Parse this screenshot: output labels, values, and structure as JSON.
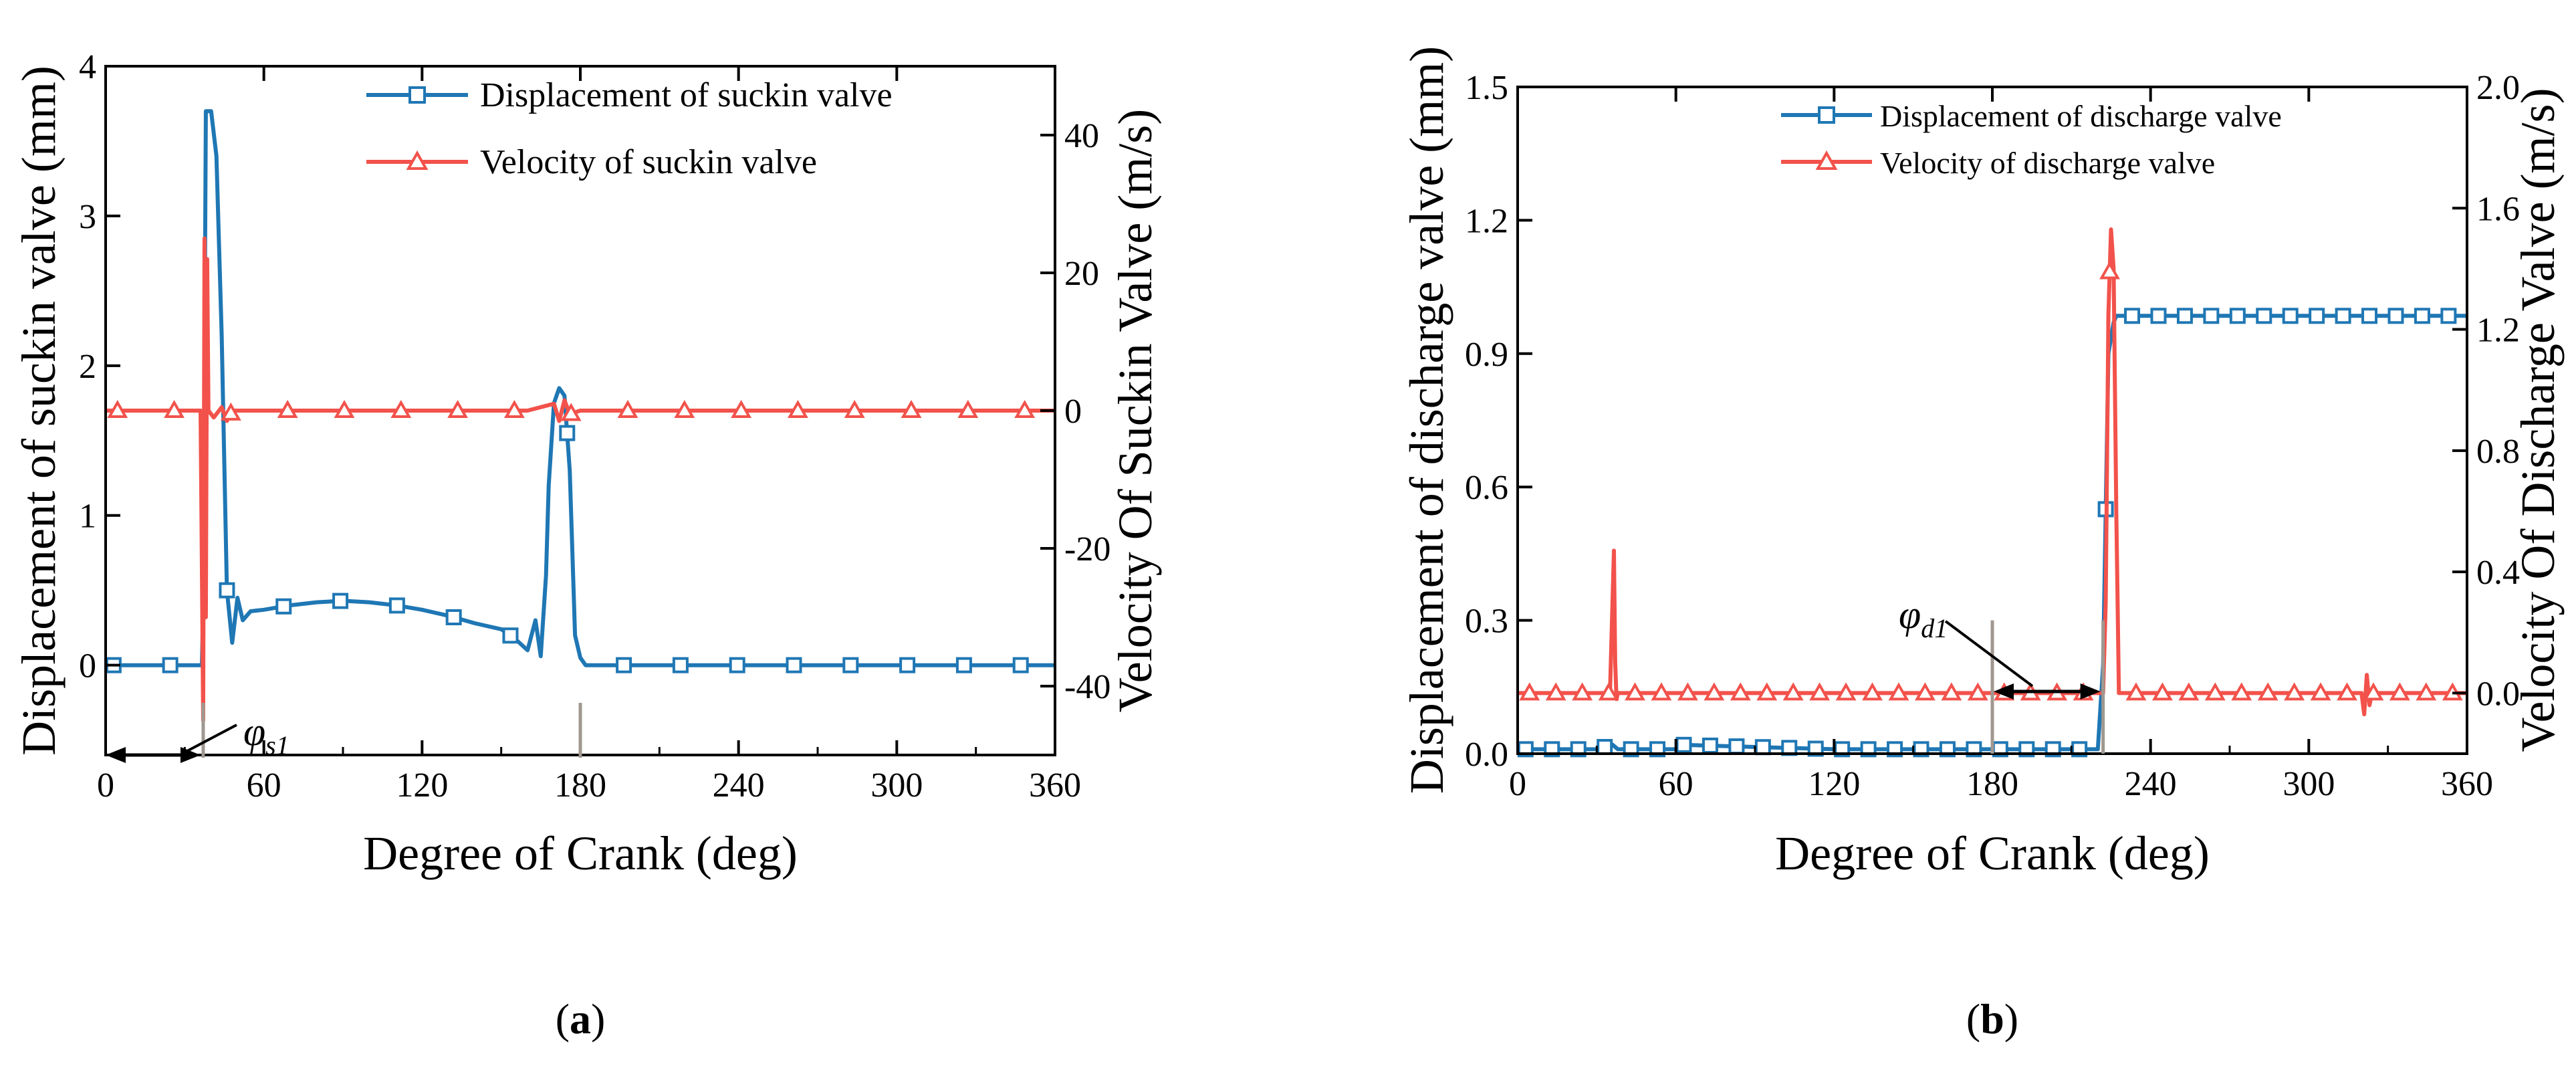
{
  "chart_data": [
    {
      "id": "a",
      "type": "line",
      "panel_label": "a",
      "xlabel": "Degree of Crank (deg)",
      "ylabel_left": "Displacement of  suckin  valve (mm)",
      "ylabel_right": "Velocity Of Suckin Valve (m/s)",
      "xlim": [
        0,
        360
      ],
      "ylim_left": [
        -0.6,
        4
      ],
      "ylim_right": [
        -50,
        50
      ],
      "xticks": [
        0,
        60,
        120,
        180,
        240,
        300,
        360
      ],
      "yticks_left": [
        0,
        1,
        2,
        3,
        4
      ],
      "yticks_right": [
        -40,
        -20,
        0,
        20,
        40
      ],
      "legend_position": "top-right",
      "grid": false,
      "annotation": {
        "symbol": "φ",
        "subscript": "s1",
        "x_from": 0,
        "x_to": 37
      },
      "marker_lines": [
        37,
        180
      ],
      "series": [
        {
          "name": "Displacement of  suckin  valve",
          "color": "#1f77b4",
          "marker": "square",
          "axis": "left",
          "x": [
            0,
            36.5,
            37,
            38,
            40,
            42,
            44,
            46,
            48,
            50,
            52,
            55,
            60,
            70,
            80,
            90,
            100,
            110,
            120,
            130,
            140,
            150,
            155,
            160,
            163,
            165,
            167,
            168,
            170,
            172,
            174,
            176,
            178,
            180,
            182,
            190,
            360
          ],
          "y": [
            0,
            0,
            0.4,
            3.7,
            3.7,
            3.4,
            2.2,
            0.5,
            0.15,
            0.45,
            0.3,
            0.36,
            0.37,
            0.4,
            0.42,
            0.43,
            0.42,
            0.4,
            0.37,
            0.33,
            0.28,
            0.24,
            0.18,
            0.1,
            0.3,
            0.06,
            0.6,
            1.2,
            1.75,
            1.85,
            1.8,
            1.3,
            0.2,
            0.05,
            0,
            0,
            0
          ]
        },
        {
          "name": "Velocity of  suckin  valve",
          "color": "#f2524b",
          "marker": "triangle",
          "axis": "right",
          "x": [
            0,
            36,
            37,
            37.5,
            38,
            38.5,
            39,
            41,
            44,
            46,
            48,
            60,
            160,
            170,
            172,
            174,
            176,
            180,
            360
          ],
          "y": [
            0,
            0,
            -45,
            25,
            -30,
            22,
            0,
            -1,
            0.5,
            -1.5,
            0,
            0,
            0,
            1,
            -1.5,
            1.5,
            -0.5,
            0,
            0
          ]
        }
      ]
    },
    {
      "id": "b",
      "type": "line",
      "panel_label": "b",
      "xlabel": "Degree of Crank (deg)",
      "ylabel_left": "Displacement of  discharge  valve (mm)",
      "ylabel_right": "Velocity Of Discharge Valve (m/s)",
      "xlim": [
        0,
        360
      ],
      "ylim_left": [
        0,
        1.5
      ],
      "ylim_right": [
        -0.2,
        2.0
      ],
      "xticks": [
        0,
        60,
        120,
        180,
        240,
        300,
        360
      ],
      "yticks_left": [
        0.0,
        0.3,
        0.6,
        0.9,
        1.2,
        1.5
      ],
      "yticks_right": [
        0.0,
        0.4,
        0.8,
        1.2,
        1.6,
        2.0
      ],
      "legend_position": "top-right",
      "grid": false,
      "annotation": {
        "symbol": "φ",
        "subscript": "d1",
        "x_from": 180,
        "x_to": 222
      },
      "marker_lines": [
        180,
        222
      ],
      "series": [
        {
          "name": "Displacement of  discharge  valve",
          "color": "#1f77b4",
          "marker": "square",
          "axis": "left",
          "x": [
            0,
            30,
            36,
            38,
            40,
            60,
            62,
            120,
            180,
            220,
            222,
            224,
            226,
            227,
            229,
            360
          ],
          "y": [
            0.01,
            0.01,
            0.02,
            0.01,
            0.01,
            0.01,
            0.02,
            0.01,
            0.01,
            0.01,
            0.2,
            0.9,
            0.97,
            0.985,
            0.985,
            0.985
          ]
        },
        {
          "name": "Velocity of  discharge  valve",
          "color": "#f2524b",
          "marker": "triangle",
          "axis": "right",
          "x": [
            0,
            35,
            36.5,
            37,
            37.5,
            38,
            222,
            223,
            224,
            225,
            226,
            227,
            228,
            320,
            321,
            322,
            323,
            324,
            360
          ],
          "y": [
            0,
            0,
            0.47,
            0.1,
            -0.02,
            0,
            0,
            0.3,
            1.25,
            1.53,
            1.4,
            0.6,
            0,
            0,
            -0.07,
            0.06,
            -0.04,
            0,
            0
          ]
        }
      ]
    }
  ]
}
